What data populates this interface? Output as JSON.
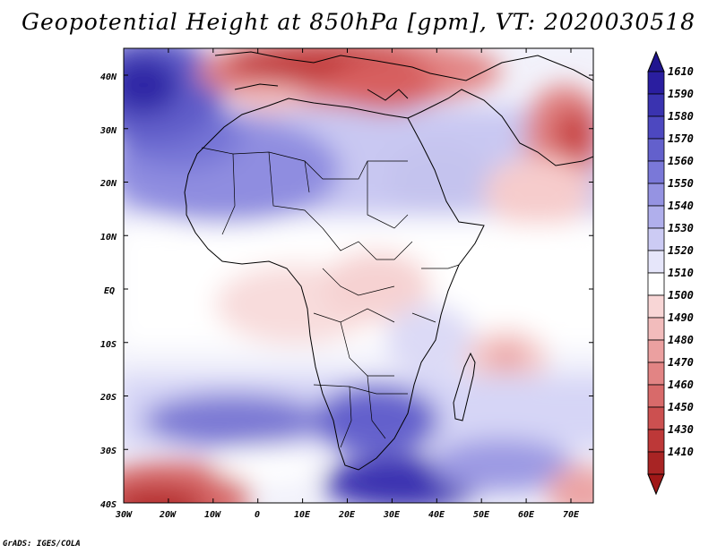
{
  "title": "Geopotential Height at 850hPa [gpm], VT: 2020030518",
  "credit": "GrADS: IGES/COLA",
  "map": {
    "lat_labels": [
      "40N",
      "30N",
      "20N",
      "10N",
      "EQ",
      "10S",
      "20S",
      "30S",
      "40S"
    ],
    "lon_labels": [
      "30W",
      "20W",
      "10W",
      "0",
      "10E",
      "20E",
      "30E",
      "40E",
      "50E",
      "60E",
      "70E"
    ]
  },
  "colorbar": {
    "levels": [
      "1610",
      "1590",
      "1580",
      "1570",
      "1560",
      "1550",
      "1540",
      "1530",
      "1520",
      "1510",
      "1500",
      "1490",
      "1480",
      "1470",
      "1460",
      "1450",
      "1430",
      "1410"
    ],
    "colors": [
      "#2a1ea0",
      "#3a33b0",
      "#4d48c0",
      "#6360cc",
      "#7a78d8",
      "#9593e2",
      "#b0afec",
      "#cccbf4",
      "#e6e6fa",
      "#ffffff",
      "#f8d6d6",
      "#f2bcbc",
      "#eba0a0",
      "#e28484",
      "#d86a6a",
      "#cc5050",
      "#bd3838",
      "#a82424"
    ],
    "top_arrow_color": "#20158f",
    "bottom_arrow_color": "#a01818"
  }
}
